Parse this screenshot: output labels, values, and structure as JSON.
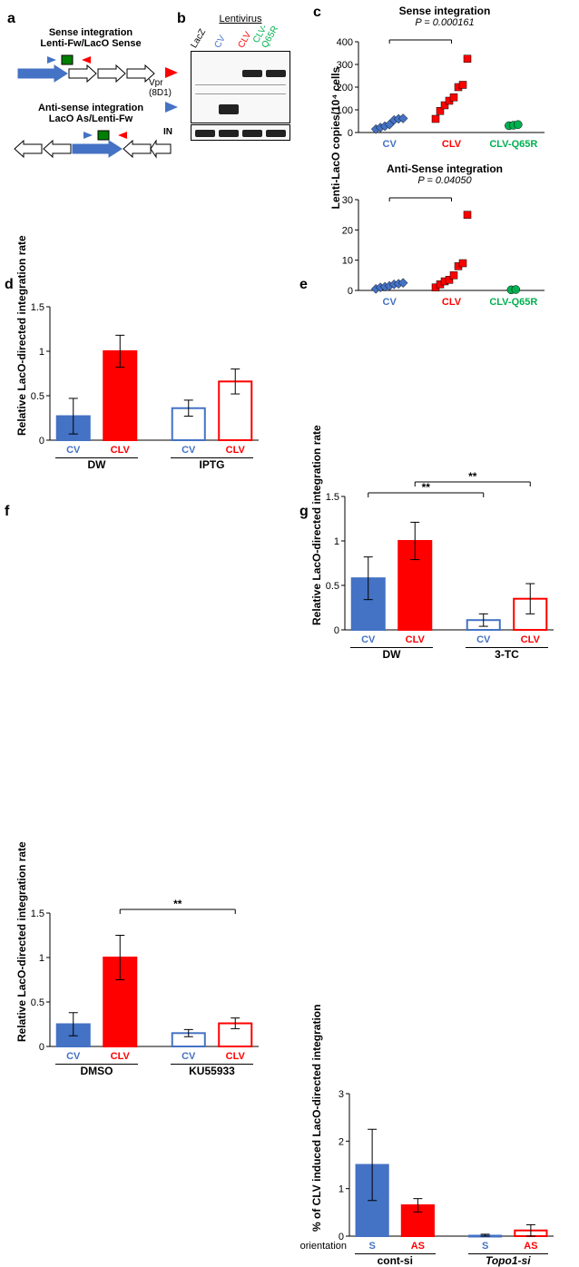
{
  "labels": {
    "a": "a",
    "b": "b",
    "c": "c",
    "d": "d",
    "e": "e",
    "f": "f",
    "g": "g"
  },
  "colors": {
    "cv_fill": "#4472c4",
    "clv_fill": "#ff0000",
    "q65r_fill": "#00b050",
    "black": "#000000",
    "white": "#ffffff"
  },
  "panel_a": {
    "sense_title1": "Sense integration",
    "sense_title2": "Lenti-Fw/LacO Sense",
    "as_title1": "Anti-sense integration",
    "as_title2": "LacO As/Lenti-Fw"
  },
  "panel_b": {
    "title": "Lentivirus",
    "lanes": [
      "LacZ",
      "CV",
      "CLV",
      "CLV-Q65R"
    ],
    "lane_colors": [
      "#000000",
      "#4472c4",
      "#ff0000",
      "#00b050"
    ],
    "vpr_label": "Vpr",
    "vpr_sub": "(8D1)",
    "in_label": "IN"
  },
  "panel_c": {
    "sense_title": "Sense integration",
    "as_title": "Anti-Sense integration",
    "p_sense": "P = 0.000161",
    "p_as": "P = 0.04050",
    "yaxis": "Lenti-LacO copies/10⁴ cells",
    "xlabels": [
      "CV",
      "CLV",
      "CLV-Q65R"
    ],
    "xcolors": [
      "#4472c4",
      "#ff0000",
      "#00b050"
    ],
    "sense": {
      "ymax": 400,
      "ytick": 100,
      "points": {
        "CV": [
          15,
          22,
          28,
          35,
          55,
          60,
          62
        ],
        "CLV": [
          60,
          95,
          120,
          140,
          155,
          200,
          210,
          325
        ],
        "CLV-Q65R": [
          30,
          32,
          35
        ]
      },
      "shape": {
        "CV": "diamond",
        "CLV": "square",
        "CLV-Q65R": "circle"
      }
    },
    "antisense": {
      "ymax": 30,
      "ytick": 10,
      "points": {
        "CV": [
          0.5,
          1,
          1.2,
          1.5,
          2,
          2.2,
          2.5
        ],
        "CLV": [
          1,
          2,
          3,
          3.5,
          5,
          8,
          9,
          25
        ],
        "CLV-Q65R": [
          0.2,
          0.3
        ]
      },
      "shape": {
        "CV": "diamond",
        "CLV": "square",
        "CLV-Q65R": "circle"
      }
    }
  },
  "panel_d": {
    "yaxis": "Relative LacO-directed\nintegration rate",
    "ymax": 1.5,
    "ytick": 0.5,
    "groups": [
      "DW",
      "IPTG"
    ],
    "bars": [
      {
        "label": "CV",
        "value": 0.27,
        "err": 0.2,
        "fill": "#4472c4",
        "stroke": "#4472c4",
        "text": "#4472c4"
      },
      {
        "label": "CLV",
        "value": 1.0,
        "err": 0.18,
        "fill": "#ff0000",
        "stroke": "#ff0000",
        "text": "#ff0000"
      },
      {
        "label": "CV",
        "value": 0.36,
        "err": 0.09,
        "fill": "#ffffff",
        "stroke": "#4472c4",
        "text": "#4472c4"
      },
      {
        "label": "CLV",
        "value": 0.66,
        "err": 0.14,
        "fill": "#ffffff",
        "stroke": "#ff0000",
        "text": "#ff0000"
      }
    ]
  },
  "panel_e": {
    "yaxis": "Relative LacO-directed\nintegration rate",
    "ymax": 1.5,
    "ytick": 0.5,
    "groups": [
      "DW",
      "3-TC"
    ],
    "bars": [
      {
        "label": "CV",
        "value": 0.58,
        "err": 0.24,
        "fill": "#4472c4",
        "stroke": "#4472c4",
        "text": "#4472c4"
      },
      {
        "label": "CLV",
        "value": 1.0,
        "err": 0.21,
        "fill": "#ff0000",
        "stroke": "#ff0000",
        "text": "#ff0000"
      },
      {
        "label": "CV",
        "value": 0.11,
        "err": 0.07,
        "fill": "#ffffff",
        "stroke": "#4472c4",
        "text": "#4472c4"
      },
      {
        "label": "CLV",
        "value": 0.35,
        "err": 0.17,
        "fill": "#ffffff",
        "stroke": "#ff0000",
        "text": "#ff0000"
      }
    ],
    "sig": [
      {
        "from": 0,
        "to": 2,
        "label": "**"
      },
      {
        "from": 1,
        "to": 3,
        "label": "**"
      }
    ]
  },
  "panel_f": {
    "yaxis": "Relative LacO-directed\nintegration rate",
    "ymax": 1.5,
    "ytick": 0.5,
    "groups": [
      "DMSO",
      "KU55933"
    ],
    "bars": [
      {
        "label": "CV",
        "value": 0.25,
        "err": 0.13,
        "fill": "#4472c4",
        "stroke": "#4472c4",
        "text": "#4472c4"
      },
      {
        "label": "CLV",
        "value": 1.0,
        "err": 0.25,
        "fill": "#ff0000",
        "stroke": "#ff0000",
        "text": "#ff0000"
      },
      {
        "label": "CV",
        "value": 0.15,
        "err": 0.04,
        "fill": "#ffffff",
        "stroke": "#4472c4",
        "text": "#4472c4"
      },
      {
        "label": "CLV",
        "value": 0.26,
        "err": 0.06,
        "fill": "#ffffff",
        "stroke": "#ff0000",
        "text": "#ff0000"
      }
    ],
    "sig": [
      {
        "from": 1,
        "to": 3,
        "label": "**"
      }
    ]
  },
  "panel_g": {
    "yaxis": "% of CLV induced\nLacO-directed integration",
    "ymax": 3,
    "ytick": 1,
    "groups": [
      "cont-si",
      "Topo1-si"
    ],
    "group_style": {
      "cont-si": "normal",
      "Topo1-si": "italic"
    },
    "orient_label": "orientation",
    "bars": [
      {
        "label": "S",
        "value": 1.5,
        "err": 0.75,
        "fill": "#4472c4",
        "stroke": "#4472c4",
        "text": "#4472c4"
      },
      {
        "label": "AS",
        "value": 0.65,
        "err": 0.14,
        "fill": "#ff0000",
        "stroke": "#ff0000",
        "text": "#ff0000"
      },
      {
        "label": "S",
        "value": 0.01,
        "err": 0.03,
        "fill": "#ffffff",
        "stroke": "#4472c4",
        "text": "#4472c4"
      },
      {
        "label": "AS",
        "value": 0.12,
        "err": 0.12,
        "fill": "#ffffff",
        "stroke": "#ff0000",
        "text": "#ff0000"
      }
    ]
  }
}
